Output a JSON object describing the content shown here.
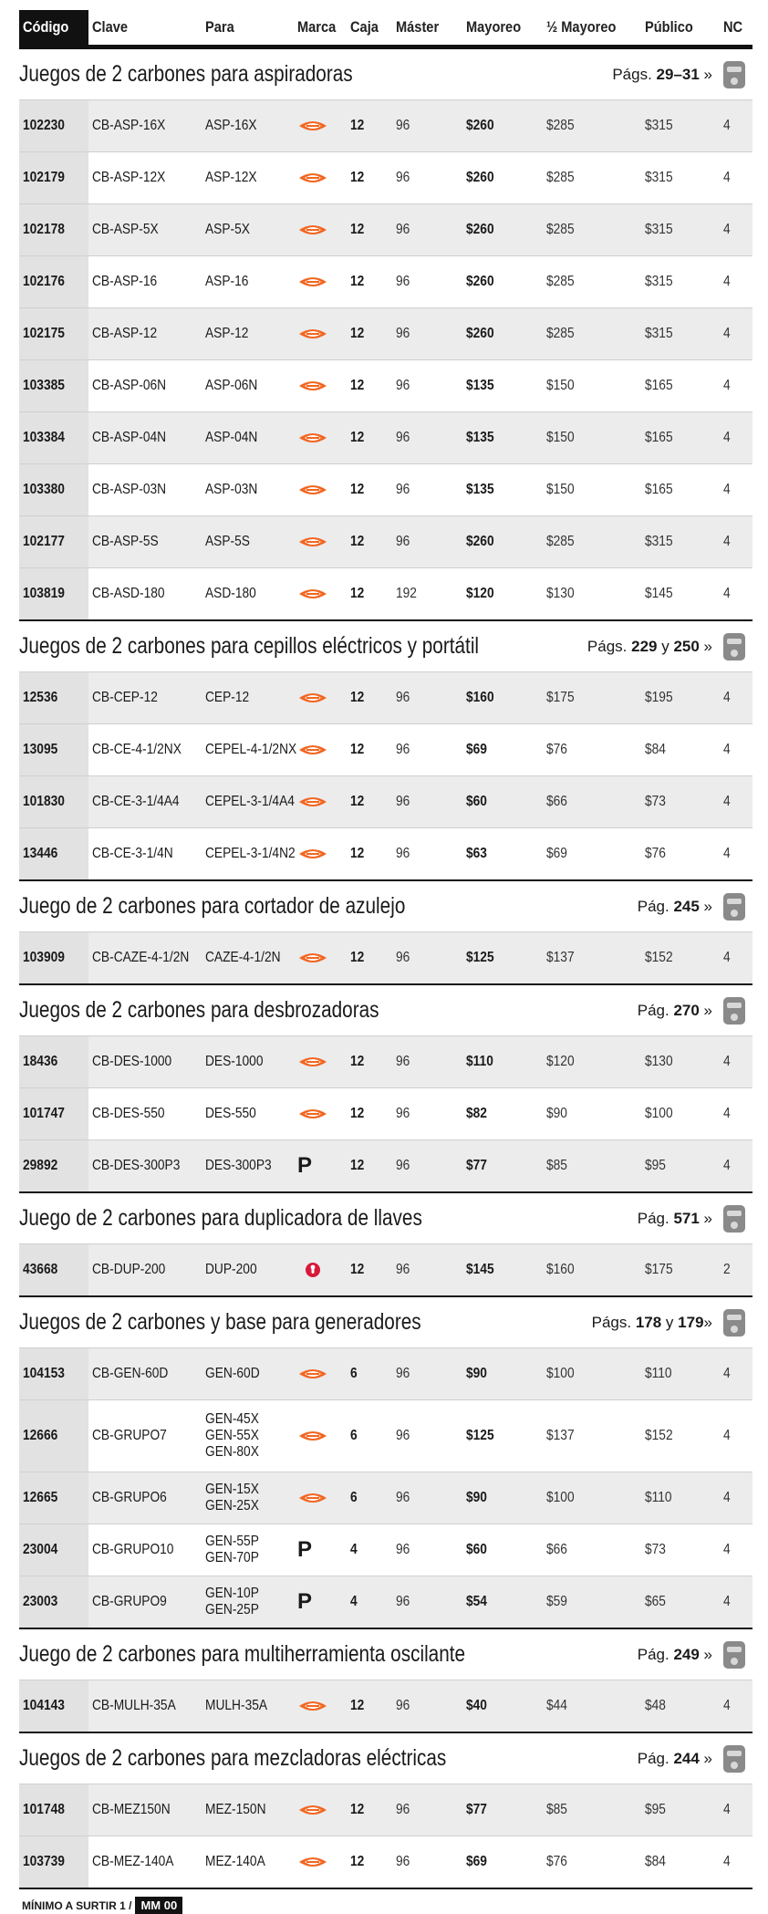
{
  "header": {
    "columns": [
      "Código",
      "Clave",
      "Para",
      "Marca",
      "Caja",
      "Máster",
      "Mayoreo",
      "½ Mayoreo",
      "Público",
      "NC"
    ]
  },
  "sections": [
    {
      "title": "Juegos de 2 carbones para aspiradoras",
      "pages": [
        {
          "text": "Págs. "
        },
        {
          "text": "29–31",
          "bold": true
        },
        {
          "text": " »"
        }
      ],
      "rows": [
        {
          "codigo": "102230",
          "clave": "CB-ASP-16X",
          "para": [
            "ASP-16X"
          ],
          "marca_icon": "truper",
          "caja": 12,
          "master": 96,
          "mayoreo": "$260",
          "medio_mayoreo": "$285",
          "publico": "$315",
          "nc": 4
        },
        {
          "codigo": "102179",
          "clave": "CB-ASP-12X",
          "para": [
            "ASP-12X"
          ],
          "marca_icon": "truper",
          "caja": 12,
          "master": 96,
          "mayoreo": "$260",
          "medio_mayoreo": "$285",
          "publico": "$315",
          "nc": 4
        },
        {
          "codigo": "102178",
          "clave": "CB-ASP-5X",
          "para": [
            "ASP-5X"
          ],
          "marca_icon": "truper",
          "caja": 12,
          "master": 96,
          "mayoreo": "$260",
          "medio_mayoreo": "$285",
          "publico": "$315",
          "nc": 4
        },
        {
          "codigo": "102176",
          "clave": "CB-ASP-16",
          "para": [
            "ASP-16"
          ],
          "marca_icon": "truper",
          "caja": 12,
          "master": 96,
          "mayoreo": "$260",
          "medio_mayoreo": "$285",
          "publico": "$315",
          "nc": 4
        },
        {
          "codigo": "102175",
          "clave": "CB-ASP-12",
          "para": [
            "ASP-12"
          ],
          "marca_icon": "truper",
          "caja": 12,
          "master": 96,
          "mayoreo": "$260",
          "medio_mayoreo": "$285",
          "publico": "$315",
          "nc": 4
        },
        {
          "codigo": "103385",
          "clave": "CB-ASP-06N",
          "para": [
            "ASP-06N"
          ],
          "marca_icon": "truper",
          "caja": 12,
          "master": 96,
          "mayoreo": "$135",
          "medio_mayoreo": "$150",
          "publico": "$165",
          "nc": 4
        },
        {
          "codigo": "103384",
          "clave": "CB-ASP-04N",
          "para": [
            "ASP-04N"
          ],
          "marca_icon": "truper",
          "caja": 12,
          "master": 96,
          "mayoreo": "$135",
          "medio_mayoreo": "$150",
          "publico": "$165",
          "nc": 4
        },
        {
          "codigo": "103380",
          "clave": "CB-ASP-03N",
          "para": [
            "ASP-03N"
          ],
          "marca_icon": "truper",
          "caja": 12,
          "master": 96,
          "mayoreo": "$135",
          "medio_mayoreo": "$150",
          "publico": "$165",
          "nc": 4
        },
        {
          "codigo": "102177",
          "clave": "CB-ASP-5S",
          "para": [
            "ASP-5S"
          ],
          "marca_icon": "truper",
          "caja": 12,
          "master": 96,
          "mayoreo": "$260",
          "medio_mayoreo": "$285",
          "publico": "$315",
          "nc": 4
        },
        {
          "codigo": "103819",
          "clave": "CB-ASD-180",
          "para": [
            "ASD-180"
          ],
          "marca_icon": "truper",
          "caja": 12,
          "master": 192,
          "mayoreo": "$120",
          "medio_mayoreo": "$130",
          "publico": "$145",
          "nc": 4
        }
      ]
    },
    {
      "title": "Juegos de 2 carbones para cepillos eléctricos y portátil",
      "pages": [
        {
          "text": "Págs. "
        },
        {
          "text": "229",
          "bold": true
        },
        {
          "text": " y "
        },
        {
          "text": "250",
          "bold": true
        },
        {
          "text": " »"
        }
      ],
      "rows": [
        {
          "codigo": "12536",
          "clave": "CB-CEP-12",
          "para": [
            "CEP-12"
          ],
          "marca_icon": "truper",
          "caja": 12,
          "master": 96,
          "mayoreo": "$160",
          "medio_mayoreo": "$175",
          "publico": "$195",
          "nc": 4
        },
        {
          "codigo": "13095",
          "clave": "CB-CE-4-1/2NX",
          "para": [
            "CEPEL-4-1/2NX"
          ],
          "marca_icon": "truper",
          "caja": 12,
          "master": 96,
          "mayoreo": "$69",
          "medio_mayoreo": "$76",
          "publico": "$84",
          "nc": 4
        },
        {
          "codigo": "101830",
          "clave": "CB-CE-3-1/4A4",
          "para": [
            "CEPEL-3-1/4A4"
          ],
          "marca_icon": "truper",
          "caja": 12,
          "master": 96,
          "mayoreo": "$60",
          "medio_mayoreo": "$66",
          "publico": "$73",
          "nc": 4
        },
        {
          "codigo": "13446",
          "clave": "CB-CE-3-1/4N",
          "para": [
            "CEPEL-3-1/4N2"
          ],
          "marca_icon": "truper",
          "caja": 12,
          "master": 96,
          "mayoreo": "$63",
          "medio_mayoreo": "$69",
          "publico": "$76",
          "nc": 4
        }
      ]
    },
    {
      "title": "Juego de 2 carbones para cortador de azulejo",
      "pages": [
        {
          "text": "Pág. "
        },
        {
          "text": "245",
          "bold": true
        },
        {
          "text": " »"
        }
      ],
      "rows": [
        {
          "codigo": "103909",
          "clave": "CB-CAZE-4-1/2N",
          "para": [
            "CAZE-4-1/2N"
          ],
          "marca_icon": "truper",
          "caja": 12,
          "master": 96,
          "mayoreo": "$125",
          "medio_mayoreo": "$137",
          "publico": "$152",
          "nc": 4
        }
      ]
    },
    {
      "title": "Juegos de 2 carbones para desbrozadoras",
      "pages": [
        {
          "text": "Pág. "
        },
        {
          "text": "270",
          "bold": true
        },
        {
          "text": " »"
        }
      ],
      "rows": [
        {
          "codigo": "18436",
          "clave": "CB-DES-1000",
          "para": [
            "DES-1000"
          ],
          "marca_icon": "truper",
          "caja": 12,
          "master": 96,
          "mayoreo": "$110",
          "medio_mayoreo": "$120",
          "publico": "$130",
          "nc": 4
        },
        {
          "codigo": "101747",
          "clave": "CB-DES-550",
          "para": [
            "DES-550"
          ],
          "marca_icon": "truper",
          "caja": 12,
          "master": 96,
          "mayoreo": "$82",
          "medio_mayoreo": "$90",
          "publico": "$100",
          "nc": 4
        },
        {
          "codigo": "29892",
          "clave": "CB-DES-300P3",
          "para": [
            "DES-300P3"
          ],
          "marca": "P",
          "caja": 12,
          "master": 96,
          "mayoreo": "$77",
          "medio_mayoreo": "$85",
          "publico": "$95",
          "nc": 4
        }
      ]
    },
    {
      "title": "Juego de 2 carbones para duplicadora de llaves",
      "pages": [
        {
          "text": "Pág. "
        },
        {
          "text": "571",
          "bold": true
        },
        {
          "text": " »"
        }
      ],
      "rows": [
        {
          "codigo": "43668",
          "clave": "CB-DUP-200",
          "para": [
            "DUP-200"
          ],
          "marca_icon": "hermex",
          "caja": 12,
          "master": 96,
          "mayoreo": "$145",
          "medio_mayoreo": "$160",
          "publico": "$175",
          "nc": 2
        }
      ]
    },
    {
      "title": "Juegos de 2 carbones y base para generadores",
      "pages": [
        {
          "text": "Págs. "
        },
        {
          "text": "178",
          "bold": true
        },
        {
          "text": " y "
        },
        {
          "text": "179",
          "bold": true
        },
        {
          "text": "»"
        }
      ],
      "rows": [
        {
          "codigo": "104153",
          "clave": "CB-GEN-60D",
          "para": [
            "GEN-60D"
          ],
          "marca_icon": "truper",
          "caja": 6,
          "master": 96,
          "mayoreo": "$90",
          "medio_mayoreo": "$100",
          "publico": "$110",
          "nc": 4
        },
        {
          "codigo": "12666",
          "clave": "CB-GRUPO7",
          "para": [
            "GEN-45X",
            "GEN-55X",
            "GEN-80X"
          ],
          "marca_icon": "truper",
          "caja": 6,
          "master": 96,
          "mayoreo": "$125",
          "medio_mayoreo": "$137",
          "publico": "$152",
          "nc": 4
        },
        {
          "codigo": "12665",
          "clave": "CB-GRUPO6",
          "para": [
            "GEN-15X",
            "GEN-25X"
          ],
          "marca_icon": "truper",
          "caja": 6,
          "master": 96,
          "mayoreo": "$90",
          "medio_mayoreo": "$100",
          "publico": "$110",
          "nc": 4
        },
        {
          "codigo": "23004",
          "clave": "CB-GRUPO10",
          "para": [
            "GEN-55P",
            "GEN-70P"
          ],
          "marca": "P",
          "caja": 4,
          "master": 96,
          "mayoreo": "$60",
          "medio_mayoreo": "$66",
          "publico": "$73",
          "nc": 4
        },
        {
          "codigo": "23003",
          "clave": "CB-GRUPO9",
          "para": [
            "GEN-10P",
            "GEN-25P"
          ],
          "marca": "P",
          "caja": 4,
          "master": 96,
          "mayoreo": "$54",
          "medio_mayoreo": "$59",
          "publico": "$65",
          "nc": 4
        }
      ]
    },
    {
      "title": "Juego de 2 carbones para multiherramienta oscilante",
      "pages": [
        {
          "text": "Pág. "
        },
        {
          "text": "249",
          "bold": true
        },
        {
          "text": " »"
        }
      ],
      "rows": [
        {
          "codigo": "104143",
          "clave": "CB-MULH-35A",
          "para": [
            "MULH-35A"
          ],
          "marca_icon": "truper",
          "caja": 12,
          "master": 96,
          "mayoreo": "$40",
          "medio_mayoreo": "$44",
          "publico": "$48",
          "nc": 4
        }
      ]
    },
    {
      "title": "Juegos de 2 carbones para mezcladoras eléctricas",
      "pages": [
        {
          "text": "Pág. "
        },
        {
          "text": "244",
          "bold": true
        },
        {
          "text": " »"
        }
      ],
      "rows": [
        {
          "codigo": "101748",
          "clave": "CB-MEZ150N",
          "para": [
            "MEZ-150N"
          ],
          "marca_icon": "truper",
          "caja": 12,
          "master": 96,
          "mayoreo": "$77",
          "medio_mayoreo": "$85",
          "publico": "$95",
          "nc": 4
        },
        {
          "codigo": "103739",
          "clave": "CB-MEZ-140A",
          "para": [
            "MEZ-140A"
          ],
          "marca_icon": "truper",
          "caja": 12,
          "master": 96,
          "mayoreo": "$69",
          "medio_mayoreo": "$76",
          "publico": "$84",
          "nc": 4
        }
      ]
    }
  ],
  "footer": {
    "text": "MÍNIMO A SURTIR 1 /",
    "badge": "MM 00"
  }
}
